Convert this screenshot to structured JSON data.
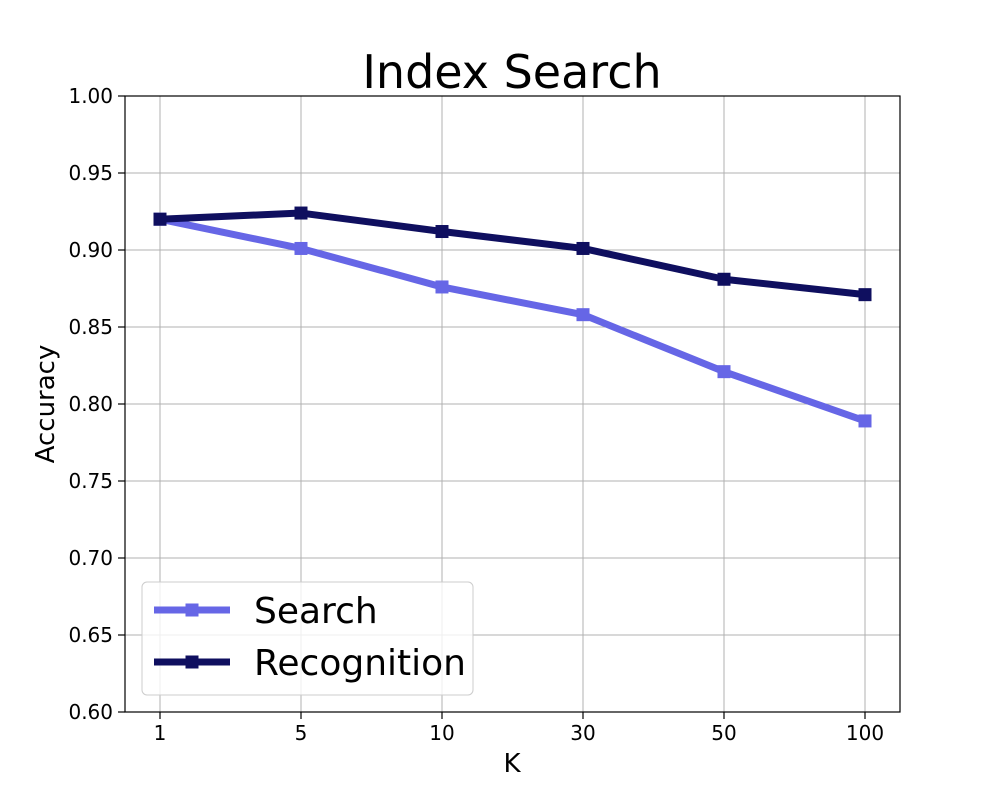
{
  "chart_data": {
    "type": "line",
    "title": "Index Search",
    "xlabel": "K",
    "ylabel": "Accuracy",
    "categories": [
      "1",
      "5",
      "10",
      "30",
      "50",
      "100"
    ],
    "ylim": [
      0.6,
      1.0
    ],
    "yticks": [
      "0.60",
      "0.65",
      "0.70",
      "0.75",
      "0.80",
      "0.85",
      "0.90",
      "0.95",
      "1.00"
    ],
    "grid": true,
    "legend_position": "lower-left",
    "series": [
      {
        "name": "Search",
        "color": "#6666e6",
        "marker": "square",
        "values": [
          0.92,
          0.901,
          0.876,
          0.858,
          0.821,
          0.789
        ]
      },
      {
        "name": "Recognition",
        "color": "#0f0f5f",
        "marker": "square",
        "values": [
          0.92,
          0.924,
          0.912,
          0.901,
          0.881,
          0.871
        ]
      }
    ]
  }
}
